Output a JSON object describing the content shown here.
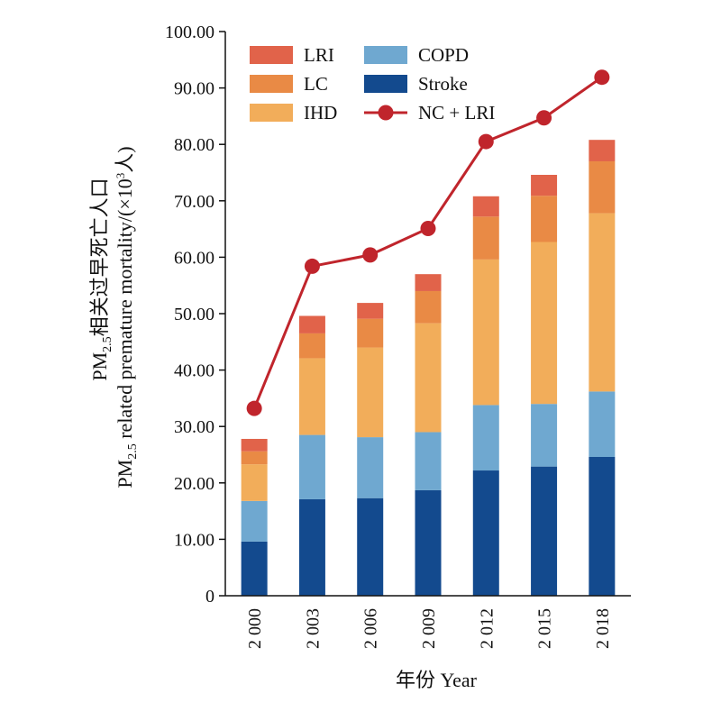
{
  "chart_data": {
    "type": "bar",
    "stacked": true,
    "categories": [
      "2 000",
      "2 003",
      "2 006",
      "2 009",
      "2 012",
      "2 015",
      "2 018"
    ],
    "series": [
      {
        "name": "Stroke",
        "color": "#134a8e",
        "values": [
          9.6,
          17.1,
          17.3,
          18.7,
          22.2,
          22.9,
          24.6
        ]
      },
      {
        "name": "COPD",
        "color": "#6fa8d0",
        "values": [
          7.2,
          11.4,
          10.8,
          10.3,
          11.6,
          11.1,
          11.6
        ]
      },
      {
        "name": "IHD",
        "color": "#f2ad5a",
        "values": [
          6.5,
          13.6,
          15.9,
          19.3,
          25.8,
          28.7,
          31.6
        ]
      },
      {
        "name": "LC",
        "color": "#e98a45",
        "values": [
          2.3,
          4.4,
          5.1,
          5.7,
          7.6,
          8.2,
          9.2
        ]
      },
      {
        "name": "LRI",
        "color": "#e1634a",
        "values": [
          2.2,
          3.1,
          2.8,
          3.0,
          3.6,
          3.7,
          3.8
        ]
      }
    ],
    "line": {
      "name": "NC + LRI",
      "color": "#c0252c",
      "values": [
        33.2,
        58.4,
        60.4,
        65.1,
        80.5,
        84.7,
        91.9
      ]
    },
    "y_ticks": [
      "0",
      "10.00",
      "20.00",
      "30.00",
      "40.00",
      "50.00",
      "60.00",
      "70.00",
      "80.00",
      "90.00",
      "100.00"
    ],
    "ylim": [
      0,
      100
    ],
    "ylabel_line1_main": "PM",
    "ylabel_line1_sub": "2.5",
    "ylabel_line1_rest": "相关过早死亡人口",
    "ylabel_line2_main": "PM",
    "ylabel_line2_sub": "2.5",
    "ylabel_line2_rest": " related premature mortality/(×10",
    "ylabel_line2_sup": "3",
    "ylabel_line2_end": "人)",
    "xlabel": "年份 Year",
    "legend": {
      "left": [
        "LRI",
        "LC",
        "IHD"
      ],
      "right": [
        "COPD",
        "Stroke",
        "NC + LRI"
      ],
      "placement": "top-left"
    }
  }
}
